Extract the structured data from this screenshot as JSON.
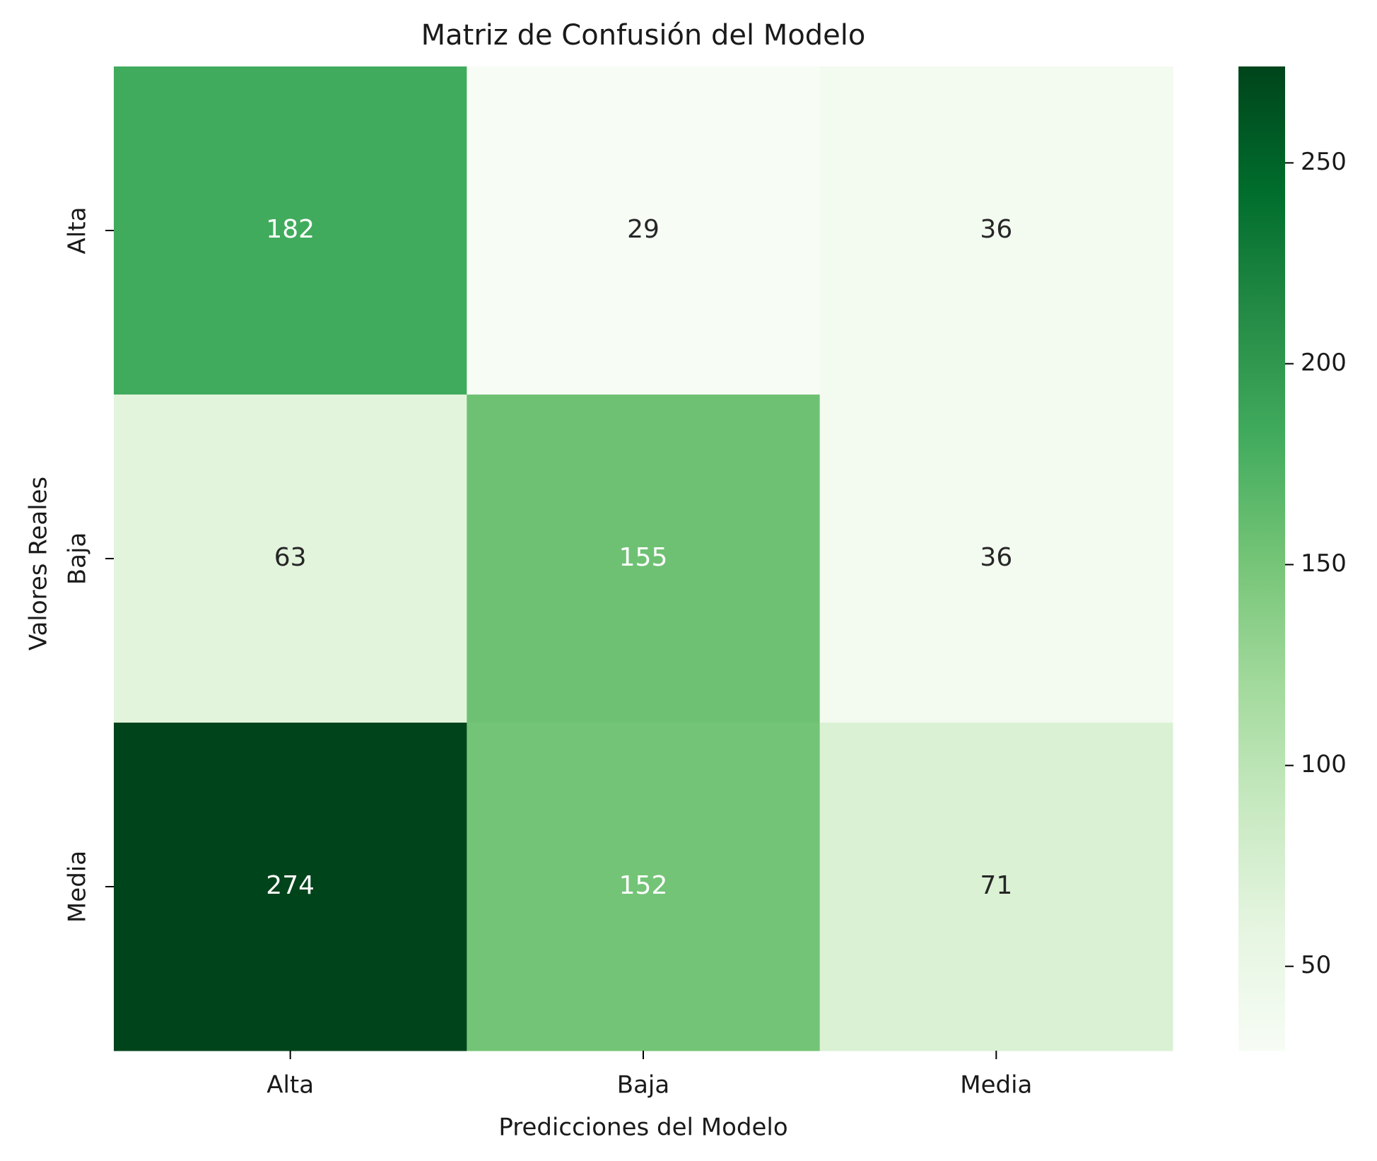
{
  "chart_data": {
    "type": "heatmap",
    "title": "Matriz de Confusión del Modelo",
    "xlabel": "Predicciones del Modelo",
    "ylabel": "Valores Reales",
    "x_categories": [
      "Alta",
      "Baja",
      "Media"
    ],
    "y_categories": [
      "Alta",
      "Baja",
      "Media"
    ],
    "values": [
      [
        182,
        29,
        36
      ],
      [
        63,
        155,
        36
      ],
      [
        274,
        152,
        71
      ]
    ],
    "colormap": "Greens",
    "color_range": [
      29,
      274
    ],
    "colorbar_ticks": [
      50,
      100,
      150,
      200,
      250
    ],
    "colors": {
      "low": "#f7fcf5",
      "high": "#00441b",
      "text_light": "#ffffff",
      "text_dark": "#262626"
    }
  }
}
